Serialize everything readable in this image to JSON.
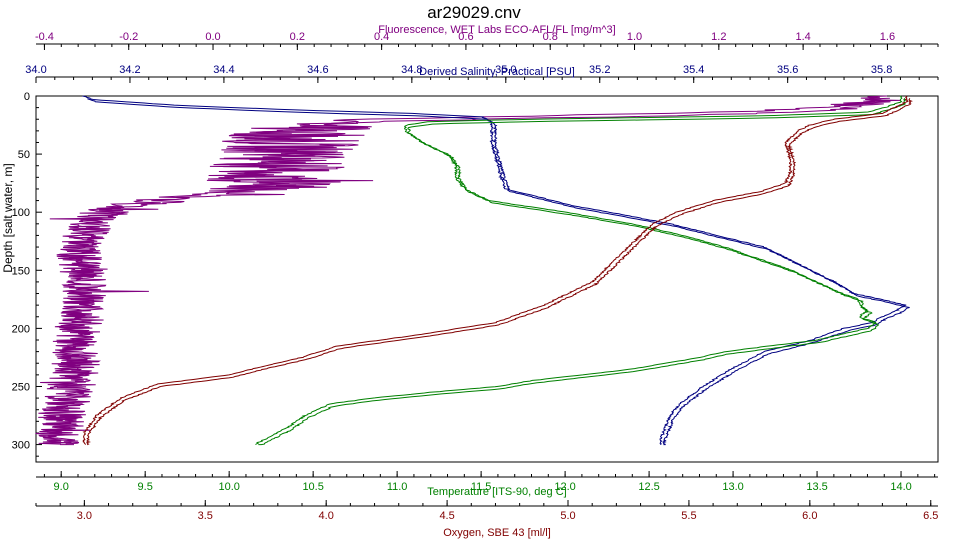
{
  "chart_data": {
    "type": "line",
    "title": "ar29029.cnv",
    "y_axis": {
      "label": "Depth [salt water, m]",
      "range": [
        0,
        315
      ],
      "ticks": [
        0,
        50,
        100,
        150,
        200,
        250,
        300
      ],
      "reversed": true
    },
    "x_axes": [
      {
        "id": "fluor",
        "position": "top",
        "label": "Fluorescence, WET Labs ECO-AFL/FL [mg/m^3]",
        "color": "#800080",
        "range": [
          -0.42,
          1.72
        ],
        "ticks": [
          -0.4,
          -0.2,
          0.0,
          0.2,
          0.4,
          0.6,
          0.8,
          1.0,
          1.2,
          1.4,
          1.6
        ],
        "tick_labels": [
          "-0.4",
          "-0.2",
          "0.0",
          "0.2",
          "0.4",
          "0.6",
          "0.8",
          "1.0",
          "1.2",
          "1.4",
          "1.6"
        ]
      },
      {
        "id": "sal",
        "position": "top",
        "label": "Derived Salinity, Practical [PSU]",
        "color": "#000080",
        "range": [
          34.0,
          35.92
        ],
        "ticks": [
          34.0,
          34.2,
          34.4,
          34.6,
          34.8,
          35.0,
          35.2,
          35.4,
          35.6,
          35.8
        ],
        "tick_labels": [
          "34.0",
          "34.2",
          "34.4",
          "34.6",
          "34.8",
          "35.0",
          "35.2",
          "35.4",
          "35.6",
          "35.8"
        ]
      },
      {
        "id": "temp",
        "position": "bottom",
        "label": "Temperature [ITS-90, deg C]",
        "color": "#008000",
        "range": [
          8.85,
          14.22
        ],
        "ticks": [
          9.0,
          9.5,
          10.0,
          10.5,
          11.0,
          11.5,
          12.0,
          12.5,
          13.0,
          13.5,
          14.0
        ],
        "tick_labels": [
          "9.0",
          "9.5",
          "10.0",
          "10.5",
          "11.0",
          "11.5",
          "12.0",
          "12.5",
          "13.0",
          "13.5",
          "14.0"
        ]
      },
      {
        "id": "oxy",
        "position": "bottom",
        "label": "Oxygen, SBE 43 [ml/l]",
        "color": "#800000",
        "range": [
          2.8,
          6.53
        ],
        "ticks": [
          3.0,
          3.5,
          4.0,
          4.5,
          5.0,
          5.5,
          6.0,
          6.5
        ],
        "tick_labels": [
          "3.0",
          "3.5",
          "4.0",
          "4.5",
          "5.0",
          "5.5",
          "6.0",
          "6.5"
        ]
      }
    ],
    "grid": false,
    "series": [
      {
        "axis": "fluor",
        "color": "#800080",
        "noise": 0.025,
        "depth": [
          0,
          5,
          10,
          14,
          17,
          20,
          24,
          30,
          40,
          55,
          70,
          78,
          80,
          85,
          90,
          95,
          100,
          105,
          110,
          120,
          135,
          150,
          170,
          190,
          210,
          230,
          250,
          270,
          290,
          300
        ],
        "values": [
          1.6,
          1.55,
          1.45,
          1.2,
          0.8,
          0.35,
          0.25,
          0.2,
          0.18,
          0.15,
          0.14,
          0.13,
          0.1,
          -0.05,
          -0.15,
          -0.22,
          -0.26,
          -0.28,
          -0.3,
          -0.31,
          -0.32,
          -0.31,
          -0.31,
          -0.32,
          -0.33,
          -0.33,
          -0.34,
          -0.36,
          -0.37,
          -0.37
        ]
      },
      {
        "axis": "sal",
        "color": "#000080",
        "noise": 0,
        "depth": [
          0,
          3,
          8,
          12,
          15,
          18,
          22,
          30,
          40,
          55,
          70,
          80,
          88,
          95,
          100,
          110,
          120,
          130,
          140,
          150,
          160,
          170,
          175,
          180,
          185,
          190,
          195,
          200,
          210,
          220,
          235,
          250,
          265,
          275,
          285,
          295,
          300
        ],
        "values": [
          34.1,
          34.12,
          34.3,
          34.55,
          34.8,
          34.95,
          34.97,
          34.97,
          34.97,
          34.98,
          34.99,
          35.0,
          35.08,
          35.15,
          35.22,
          35.35,
          35.45,
          35.55,
          35.6,
          35.65,
          35.7,
          35.74,
          35.8,
          35.85,
          35.83,
          35.8,
          35.78,
          35.72,
          35.65,
          35.55,
          35.48,
          35.42,
          35.37,
          35.35,
          35.34,
          35.33,
          35.33
        ]
      },
      {
        "axis": "temp",
        "color": "#008000",
        "noise": 0,
        "depth": [
          0,
          5,
          10,
          14,
          17,
          20,
          22,
          25,
          30,
          40,
          50,
          60,
          70,
          80,
          90,
          100,
          110,
          120,
          130,
          140,
          150,
          160,
          170,
          175,
          180,
          185,
          190,
          195,
          200,
          210,
          220,
          225,
          235,
          245,
          250,
          255,
          260,
          265,
          275,
          285,
          300
        ],
        "values": [
          14.0,
          14.0,
          13.9,
          13.8,
          13.2,
          11.8,
          11.2,
          11.05,
          11.05,
          11.15,
          11.3,
          11.35,
          11.35,
          11.4,
          11.55,
          12.0,
          12.4,
          12.7,
          12.95,
          13.15,
          13.35,
          13.5,
          13.65,
          13.75,
          13.75,
          13.8,
          13.75,
          13.85,
          13.8,
          13.5,
          12.95,
          12.8,
          12.4,
          11.8,
          11.6,
          11.2,
          10.85,
          10.6,
          10.45,
          10.35,
          10.15
        ]
      },
      {
        "axis": "oxy",
        "color": "#800000",
        "noise": 0,
        "depth": [
          0,
          5,
          10,
          15,
          20,
          25,
          30,
          40,
          55,
          65,
          75,
          82,
          90,
          100,
          110,
          120,
          140,
          160,
          170,
          180,
          195,
          205,
          215,
          225,
          232,
          240,
          248,
          260,
          275,
          290,
          300
        ],
        "values": [
          6.4,
          6.4,
          6.35,
          6.3,
          6.1,
          6.0,
          5.95,
          5.9,
          5.92,
          5.92,
          5.9,
          5.8,
          5.6,
          5.45,
          5.35,
          5.3,
          5.2,
          5.1,
          5.0,
          4.9,
          4.7,
          4.4,
          4.05,
          3.9,
          3.75,
          3.6,
          3.3,
          3.15,
          3.05,
          3.0,
          3.0
        ]
      }
    ]
  }
}
